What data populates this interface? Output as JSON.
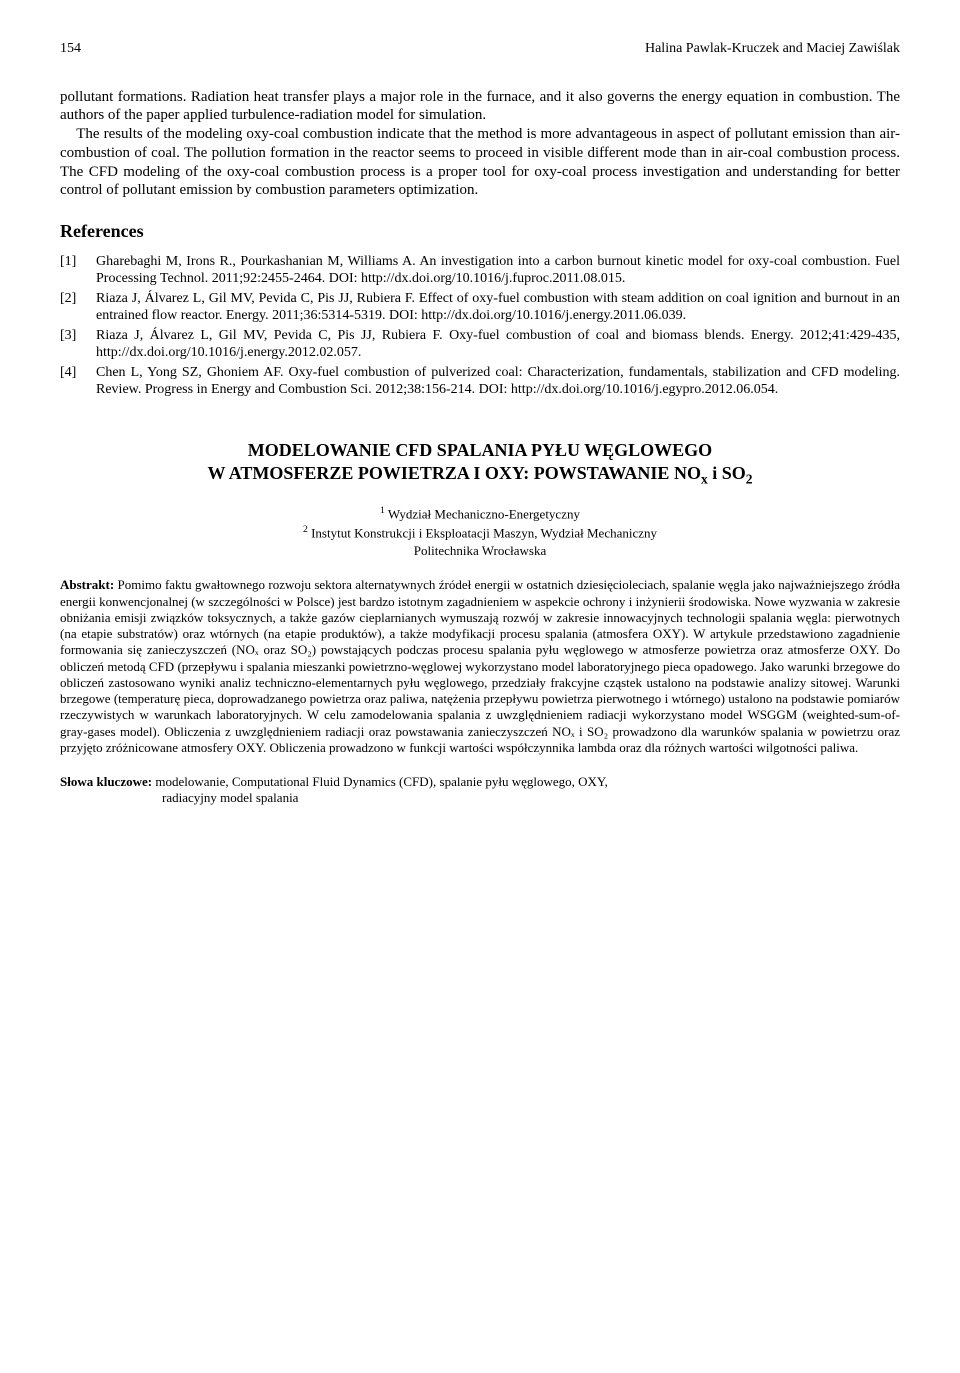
{
  "header": {
    "page_number": "154",
    "running_head": "Halina Pawlak-Kruczek and Maciej Zawiślak"
  },
  "body_paragraph": "pollutant formations. Radiation heat transfer plays a major role in the furnace, and it also governs the energy equation in combustion. The authors of the paper applied turbulence-radiation model for simulation.\n    The results of the modeling oxy-coal combustion indicate that the method is more advantageous in aspect of pollutant emission than air-combustion of coal. The pollution formation in the reactor seems to proceed in visible different mode than in air-coal combustion process. The CFD modeling of the oxy-coal combustion process is a proper tool for oxy-coal process investigation and understanding for better control of pollutant emission by combustion parameters optimization.",
  "references_heading": "References",
  "references": [
    {
      "num": "[1]",
      "text": "Gharebaghi M, Irons R., Pourkashanian M, Williams A. An investigation into a carbon burnout kinetic model for oxy-coal combustion. Fuel Processing Technol. 2011;92:2455-2464. DOI: http://dx.doi.org/10.1016/j.fuproc.2011.08.015."
    },
    {
      "num": "[2]",
      "text": "Riaza J, Álvarez L, Gil MV, Pevida C, Pis JJ, Rubiera F. Effect of oxy-fuel combustion with steam addition on coal ignition and burnout in an entrained flow reactor. Energy. 2011;36:5314-5319. DOI: http://dx.doi.org/10.1016/j.energy.2011.06.039."
    },
    {
      "num": "[3]",
      "text": "Riaza J, Álvarez L, Gil MV, Pevida C, Pis JJ, Rubiera F. Oxy-fuel combustion of coal and biomass blends. Energy. 2012;41:429-435, http://dx.doi.org/10.1016/j.energy.2012.02.057."
    },
    {
      "num": "[4]",
      "text": "Chen L, Yong SZ, Ghoniem AF. Oxy-fuel combustion of pulverized coal: Characterization, fundamentals, stabilization and CFD modeling. Review. Progress in Energy and Combustion Sci. 2012;38:156-214. DOI: http://dx.doi.org/10.1016/j.egypro.2012.06.054."
    }
  ],
  "title_pl_line1": "MODELOWANIE CFD SPALANIA PYŁU WĘGLOWEGO",
  "title_pl_line2": "W ATMOSFERZE POWIETRZA I OXY: POWSTAWANIE NO",
  "title_pl_sub1": "x",
  "title_pl_mid": " i SO",
  "title_pl_sub2": "2",
  "affil": {
    "sup1": "1",
    "line1": " Wydział Mechaniczno-Energetyczny",
    "sup2": "2",
    "line2": " Instytut Konstrukcji i Eksploatacji Maszyn, Wydział Mechaniczny",
    "line3": "Politechnika Wrocławska"
  },
  "abstract_pl_label": "Abstrakt:",
  "abstract_pl": " Pomimo faktu gwałtownego rozwoju sektora alternatywnych źródeł energii w ostatnich dziesięcioleciach, spalanie węgla jako najważniejszego źródła energii konwencjonalnej (w szczególności w Polsce) jest bardzo istotnym zagadnieniem w aspekcie ochrony i inżynierii środowiska. Nowe wyzwania w zakresie obniżania emisji związków toksycznych, a także gazów cieplarnianych wymuszają rozwój w zakresie innowacyjnych technologii spalania węgla: pierwotnych (na etapie substratów) oraz wtórnych (na etapie produktów), a także modyfikacji procesu spalania (atmosfera OXY). W artykule przedstawiono zagadnienie formowania się zanieczyszczeń (NOₓ oraz SO₂) powstających podczas procesu spalania pyłu węglowego w atmosferze powietrza oraz atmosferze OXY. Do obliczeń metodą CFD (przepływu i spalania mieszanki powietrzno-węglowej wykorzystano model laboratoryjnego pieca opadowego. Jako warunki brzegowe do obliczeń zastosowano wyniki analiz techniczno-elementarnych pyłu węglowego, przedziały frakcyjne cząstek ustalono na podstawie analizy sitowej. Warunki brzegowe (temperaturę pieca, doprowadzanego powietrza oraz paliwa, natężenia przepływu powietrza pierwotnego i wtórnego) ustalono na podstawie pomiarów rzeczywistych w warunkach laboratoryjnych. W celu zamodelowania spalania z uwzględnieniem radiacji wykorzystano model WSGGM (weighted-sum-of-gray-gases model). Obliczenia z uwzględnieniem radiacji oraz powstawania zanieczyszczeń NOₓ i SO₂ prowadzono dla warunków spalania w powietrzu oraz przyjęto zróżnicowane atmosfery OXY. Obliczenia prowadzono w funkcji wartości współczynnika lambda oraz dla różnych wartości wilgotności paliwa.",
  "keywords_label": "Słowa kluczowe:",
  "keywords_line1": " modelowanie, Computational Fluid Dynamics (CFD), spalanie pyłu węglowego, OXY,",
  "keywords_line2": "radiacyjny model spalania"
}
